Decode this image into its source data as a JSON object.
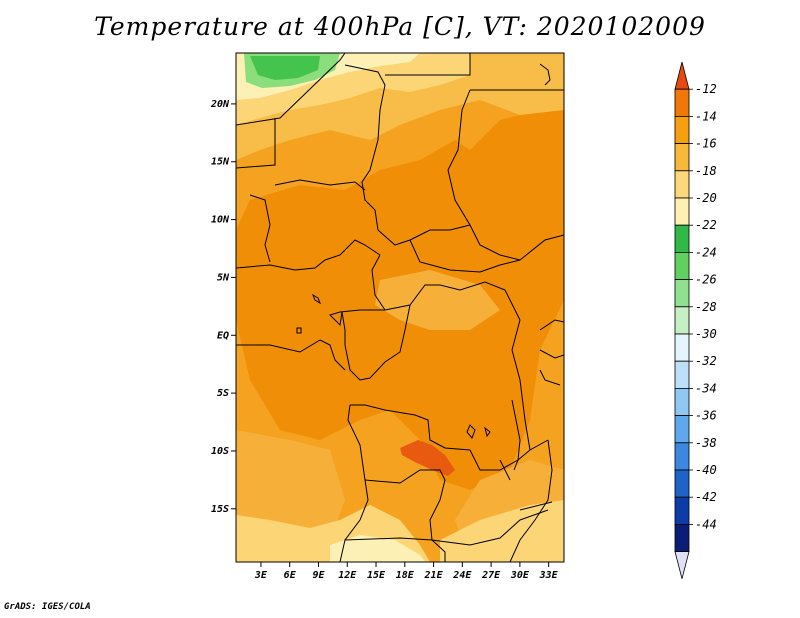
{
  "title": "Temperature at 400hPa [C], VT: 2020102009",
  "credit": "GrADS: IGES/COLA",
  "chart_data": {
    "type": "heatmap",
    "title": "Temperature at 400hPa [C], VT: 2020102009",
    "units": "C",
    "x_tick_labels": [
      "3E",
      "6E",
      "9E",
      "12E",
      "15E",
      "18E",
      "21E",
      "24E",
      "27E",
      "30E",
      "33E"
    ],
    "x_ticks": [
      3,
      6,
      9,
      12,
      15,
      18,
      21,
      24,
      27,
      30,
      33
    ],
    "y_tick_labels": [
      "20N",
      "15N",
      "10N",
      "5N",
      "EQ",
      "5S",
      "10S",
      "15S"
    ],
    "y_ticks": [
      20,
      15,
      10,
      5,
      0,
      -5,
      -10,
      -15
    ],
    "xlim": [
      0.4,
      34.6
    ],
    "ylim": [
      -19.6,
      24.4
    ],
    "colorbar": {
      "levels": [
        -12,
        -14,
        -16,
        -18,
        -20,
        -22,
        -24,
        -26,
        -28,
        -30,
        -32,
        -34,
        -36,
        -38,
        -40,
        -42,
        -44
      ],
      "labels": [
        "-12",
        "-14",
        "-16",
        "-18",
        "-20",
        "-22",
        "-24",
        "-26",
        "-28",
        "-30",
        "-32",
        "-34",
        "-36",
        "-38",
        "-40",
        "-42",
        "-44"
      ],
      "colors": [
        "#e64a10",
        "#f07808",
        "#f6a010",
        "#f8b83a",
        "#fcd878",
        "#fef0b0",
        "#30b848",
        "#60d060",
        "#90e090",
        "#c4f0c4",
        "#e4f6fc",
        "#bde0f8",
        "#90c8f4",
        "#60a8ec",
        "#3c88e0",
        "#1e64c8",
        "#0c3ca8",
        "#0a1e78",
        "#e0e0f4"
      ],
      "arrow_top": "#e64a10",
      "arrow_bottom": "#e0e0f4"
    },
    "field_summary": {
      "dominant_range": "-16 to -14",
      "warm_core_range": "-14 to -12",
      "warm_core_location": "near 21E, 10S",
      "cool_range": "-24 to -22",
      "cool_location": "northwest corner near 3-8E, 23N",
      "colors": {
        "deep_orange": "#f08e08",
        "orange": "#f4a220",
        "light_orange": "#f8bc48",
        "yellow": "#fcd676",
        "pale_yellow": "#fdf0b4",
        "red_orange": "#e85a10",
        "green": "#44c44c",
        "light_green": "#8ade7c"
      }
    }
  }
}
